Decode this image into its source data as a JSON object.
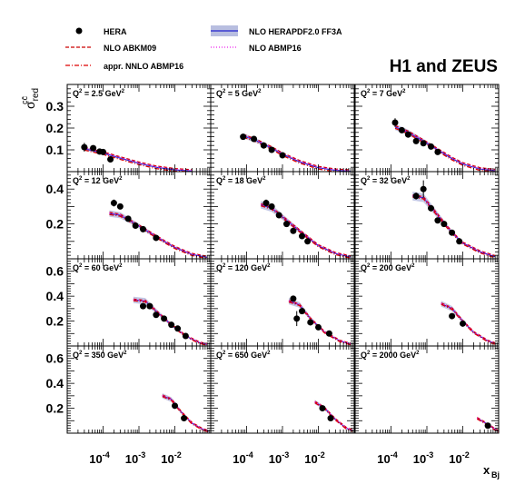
{
  "chart_data": {
    "type": "scatter",
    "title": "H1 and ZEUS",
    "ylabel_main": "σ",
    "ylabel_sup": "cc̄",
    "ylabel_sub": "red",
    "xlabel_main": "x",
    "xlabel_sub": "Bj",
    "x_scale": "log",
    "xlim": [
      1e-05,
      0.1
    ],
    "x_tick_labels": [
      {
        "base": "10",
        "exp": "-4",
        "value": 0.0001
      },
      {
        "base": "10",
        "exp": "-3",
        "value": 0.001
      },
      {
        "base": "10",
        "exp": "-2",
        "value": 0.01
      }
    ],
    "row_ylims": [
      [
        0,
        0.4
      ],
      [
        0,
        0.5
      ],
      [
        0,
        0.7
      ],
      [
        0,
        0.7
      ]
    ],
    "row_yticks": [
      [
        {
          "label": "0.1",
          "value": 0.1
        },
        {
          "label": "0.2",
          "value": 0.2
        },
        {
          "label": "0.3",
          "value": 0.3
        }
      ],
      [
        {
          "label": "0.2",
          "value": 0.2
        },
        {
          "label": "0.4",
          "value": 0.4
        }
      ],
      [
        {
          "label": "0.2",
          "value": 0.2
        },
        {
          "label": "0.4",
          "value": 0.4
        },
        {
          "label": "0.6",
          "value": 0.6
        }
      ],
      [
        {
          "label": "0.2",
          "value": 0.2
        },
        {
          "label": "0.4",
          "value": 0.4
        },
        {
          "label": "0.6",
          "value": 0.6
        }
      ]
    ],
    "legend": [
      {
        "key": "hera",
        "label": "HERA",
        "style": "marker"
      },
      {
        "key": "abkm09",
        "label": "NLO ABKM09",
        "style": "dashed",
        "color": "#cc0000"
      },
      {
        "key": "abmp16nnlo",
        "label": "appr. NNLO ABMP16",
        "style": "dashdot",
        "color": "#dd0000"
      },
      {
        "key": "herapdf",
        "label": "NLO HERAPDF2.0 FF3A",
        "style": "band",
        "color": "#2222cc",
        "fill": "#b8bee0"
      },
      {
        "key": "abmp16",
        "label": "NLO ABMP16",
        "style": "dotted",
        "color": "#ee22ee"
      }
    ],
    "panels": [
      {
        "label": "Q² = 2.5 GeV²",
        "q_text": "Q",
        "q_val": " = 2.5 GeV",
        "row": 0,
        "col": 0,
        "points": [
          [
            3e-05,
            0.112,
            0.02
          ],
          [
            5.3e-05,
            0.108,
            0.008
          ],
          [
            8e-05,
            0.092,
            0.01
          ],
          [
            0.0001,
            0.09,
            0.008
          ],
          [
            0.00016,
            0.056,
            0.006
          ]
        ],
        "theory": [
          [
            3e-05,
            0.105
          ],
          [
            0.0001,
            0.085
          ],
          [
            0.0003,
            0.062
          ],
          [
            0.001,
            0.038
          ],
          [
            0.003,
            0.02
          ],
          [
            0.01,
            0.008
          ],
          [
            0.03,
            0.003
          ]
        ]
      },
      {
        "label": "Q² = 5 GeV²",
        "q_text": "Q",
        "q_val": " = 5 GeV",
        "row": 0,
        "col": 1,
        "points": [
          [
            8e-05,
            0.16,
            0.012
          ],
          [
            0.00016,
            0.15,
            0.01
          ],
          [
            0.0003,
            0.12,
            0.01
          ],
          [
            0.0005,
            0.1,
            0.01
          ],
          [
            0.001,
            0.075,
            0.006
          ]
        ],
        "theory": [
          [
            8e-05,
            0.165
          ],
          [
            0.0002,
            0.14
          ],
          [
            0.0005,
            0.108
          ],
          [
            0.001,
            0.08
          ],
          [
            0.003,
            0.045
          ],
          [
            0.01,
            0.018
          ],
          [
            0.03,
            0.006
          ],
          [
            0.08,
            0.002
          ]
        ]
      },
      {
        "label": "Q² = 7 GeV²",
        "q_text": "Q",
        "q_val": " = 7 GeV",
        "row": 0,
        "col": 2,
        "points": [
          [
            0.00013,
            0.225,
            0.02
          ],
          [
            0.0002,
            0.19,
            0.01
          ],
          [
            0.0003,
            0.17,
            0.01
          ],
          [
            0.0005,
            0.14,
            0.01
          ],
          [
            0.0008,
            0.13,
            0.01
          ],
          [
            0.0013,
            0.115,
            0.008
          ],
          [
            0.002,
            0.09,
            0.006
          ]
        ],
        "theory": [
          [
            0.00013,
            0.205
          ],
          [
            0.0003,
            0.18
          ],
          [
            0.0008,
            0.14
          ],
          [
            0.002,
            0.1
          ],
          [
            0.005,
            0.06
          ],
          [
            0.01,
            0.035
          ],
          [
            0.03,
            0.012
          ],
          [
            0.08,
            0.004
          ]
        ]
      },
      {
        "label": "Q² = 12 GeV²",
        "q_text": "Q",
        "q_val": " = 12 GeV",
        "row": 1,
        "col": 0,
        "points": [
          [
            0.0002,
            0.32,
            0.02
          ],
          [
            0.0003,
            0.3,
            0.015
          ],
          [
            0.0005,
            0.23,
            0.012
          ],
          [
            0.0008,
            0.19,
            0.01
          ],
          [
            0.0013,
            0.17,
            0.01
          ],
          [
            0.003,
            0.12,
            0.008
          ]
        ],
        "theory": [
          [
            0.00015,
            0.26
          ],
          [
            0.0003,
            0.25
          ],
          [
            0.0008,
            0.2
          ],
          [
            0.002,
            0.15
          ],
          [
            0.005,
            0.1
          ],
          [
            0.01,
            0.065
          ],
          [
            0.03,
            0.025
          ],
          [
            0.08,
            0.008
          ]
        ]
      },
      {
        "label": "Q² = 18 GeV²",
        "q_text": "Q",
        "q_val": " = 18 GeV",
        "row": 1,
        "col": 1,
        "points": [
          [
            0.00035,
            0.32,
            0.02
          ],
          [
            0.0005,
            0.3,
            0.015
          ],
          [
            0.0008,
            0.25,
            0.012
          ],
          [
            0.0013,
            0.2,
            0.01
          ],
          [
            0.002,
            0.16,
            0.01
          ],
          [
            0.0035,
            0.13,
            0.008
          ],
          [
            0.005,
            0.1,
            0.008
          ]
        ],
        "theory": [
          [
            0.00025,
            0.31
          ],
          [
            0.0005,
            0.29
          ],
          [
            0.001,
            0.24
          ],
          [
            0.003,
            0.16
          ],
          [
            0.01,
            0.075
          ],
          [
            0.03,
            0.03
          ],
          [
            0.08,
            0.01
          ]
        ]
      },
      {
        "label": "Q² = 32 GeV²",
        "q_text": "Q",
        "q_val": " = 32 GeV",
        "row": 1,
        "col": 2,
        "points": [
          [
            0.0005,
            0.36,
            0.02
          ],
          [
            0.0008,
            0.4,
            0.05
          ],
          [
            0.0013,
            0.29,
            0.015
          ],
          [
            0.002,
            0.22,
            0.012
          ],
          [
            0.003,
            0.2,
            0.01
          ],
          [
            0.005,
            0.15,
            0.01
          ],
          [
            0.008,
            0.1,
            0.008
          ]
        ],
        "theory": [
          [
            0.0004,
            0.36
          ],
          [
            0.0008,
            0.35
          ],
          [
            0.002,
            0.25
          ],
          [
            0.005,
            0.15
          ],
          [
            0.01,
            0.09
          ],
          [
            0.03,
            0.04
          ],
          [
            0.08,
            0.012
          ]
        ]
      },
      {
        "label": "Q² = 60 GeV²",
        "q_text": "Q",
        "q_val": " = 60 GeV",
        "row": 2,
        "col": 0,
        "points": [
          [
            0.0013,
            0.32,
            0.02
          ],
          [
            0.002,
            0.32,
            0.02
          ],
          [
            0.003,
            0.25,
            0.015
          ],
          [
            0.005,
            0.22,
            0.012
          ],
          [
            0.008,
            0.17,
            0.01
          ],
          [
            0.012,
            0.14,
            0.01
          ],
          [
            0.02,
            0.08,
            0.008
          ]
        ],
        "theory": [
          [
            0.0007,
            0.37
          ],
          [
            0.0015,
            0.36
          ],
          [
            0.003,
            0.28
          ],
          [
            0.008,
            0.17
          ],
          [
            0.02,
            0.08
          ],
          [
            0.05,
            0.025
          ],
          [
            0.08,
            0.012
          ]
        ]
      },
      {
        "label": "Q² = 120 GeV²",
        "q_text": "Q",
        "q_val": " = 120 GeV",
        "row": 2,
        "col": 1,
        "points": [
          [
            0.002,
            0.38,
            0.02
          ],
          [
            0.0025,
            0.22,
            0.06
          ],
          [
            0.0035,
            0.28,
            0.02
          ],
          [
            0.006,
            0.19,
            0.015
          ],
          [
            0.01,
            0.15,
            0.01
          ],
          [
            0.02,
            0.1,
            0.01
          ]
        ],
        "theory": [
          [
            0.0015,
            0.36
          ],
          [
            0.003,
            0.33
          ],
          [
            0.006,
            0.22
          ],
          [
            0.015,
            0.11
          ],
          [
            0.04,
            0.04
          ],
          [
            0.08,
            0.015
          ]
        ]
      },
      {
        "label": "Q² = 200 GeV²",
        "q_text": "Q",
        "q_val": " = 200 GeV",
        "row": 2,
        "col": 2,
        "points": [
          [
            0.005,
            0.24,
            0.02
          ],
          [
            0.01,
            0.18,
            0.015
          ]
        ],
        "theory": [
          [
            0.0025,
            0.34
          ],
          [
            0.005,
            0.3
          ],
          [
            0.01,
            0.2
          ],
          [
            0.02,
            0.11
          ],
          [
            0.05,
            0.04
          ],
          [
            0.08,
            0.02
          ]
        ]
      },
      {
        "label": "Q² = 350 GeV²",
        "q_text": "Q",
        "q_val": " = 350 GeV",
        "row": 3,
        "col": 0,
        "points": [
          [
            0.01,
            0.22,
            0.02
          ],
          [
            0.018,
            0.12,
            0.01
          ]
        ],
        "theory": [
          [
            0.0045,
            0.3
          ],
          [
            0.008,
            0.27
          ],
          [
            0.015,
            0.17
          ],
          [
            0.03,
            0.08
          ],
          [
            0.06,
            0.03
          ],
          [
            0.09,
            0.015
          ]
        ]
      },
      {
        "label": "Q² = 650 GeV²",
        "q_text": "Q",
        "q_val": " = 650 GeV",
        "row": 3,
        "col": 1,
        "points": [
          [
            0.013,
            0.2,
            0.02
          ],
          [
            0.022,
            0.12,
            0.012
          ]
        ],
        "theory": [
          [
            0.008,
            0.25
          ],
          [
            0.015,
            0.2
          ],
          [
            0.03,
            0.11
          ],
          [
            0.06,
            0.04
          ],
          [
            0.09,
            0.02
          ]
        ]
      },
      {
        "label": "Q² = 2000 GeV²",
        "q_text": "Q",
        "q_val": " = 2000 GeV",
        "row": 3,
        "col": 2,
        "points": [
          [
            0.05,
            0.06,
            0.01
          ]
        ],
        "theory": [
          [
            0.025,
            0.12
          ],
          [
            0.05,
            0.07
          ],
          [
            0.08,
            0.03
          ],
          [
            0.1,
            0.015
          ]
        ]
      }
    ]
  }
}
